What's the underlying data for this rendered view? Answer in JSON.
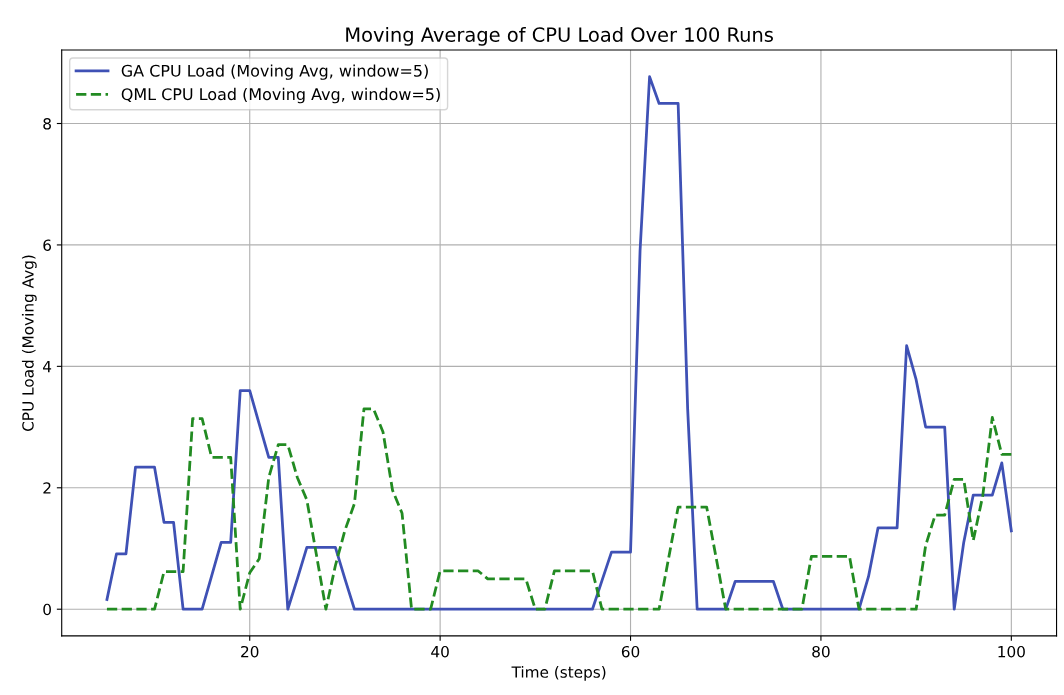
{
  "chart_data": {
    "type": "line",
    "title": "Moving Average of CPU Load Over 100 Runs",
    "xlabel": "Time (steps)",
    "ylabel": "CPU Load (Moving Avg)",
    "x": [
      5,
      6,
      7,
      8,
      9,
      10,
      11,
      12,
      13,
      14,
      15,
      16,
      17,
      18,
      19,
      20,
      21,
      22,
      23,
      24,
      25,
      26,
      27,
      28,
      29,
      30,
      31,
      32,
      33,
      34,
      35,
      36,
      37,
      38,
      39,
      40,
      41,
      42,
      43,
      44,
      45,
      46,
      47,
      48,
      49,
      50,
      51,
      52,
      53,
      54,
      55,
      56,
      57,
      58,
      59,
      60,
      61,
      62,
      63,
      64,
      65,
      66,
      67,
      68,
      69,
      70,
      71,
      72,
      73,
      74,
      75,
      76,
      77,
      78,
      79,
      80,
      81,
      82,
      83,
      84,
      85,
      86,
      87,
      88,
      89,
      90,
      91,
      92,
      93,
      94,
      95,
      96,
      97,
      98,
      99,
      100
    ],
    "series": [
      {
        "name": "GA CPU Load (Moving Avg, window=5)",
        "color": "#3f51b5",
        "line_style": "solid",
        "values": [
          0.16,
          0.91,
          0.91,
          2.34,
          2.34,
          2.34,
          1.43,
          1.43,
          0,
          0,
          0,
          0.55,
          1.1,
          1.1,
          3.6,
          3.6,
          3.05,
          2.5,
          2.5,
          0,
          0.5,
          1.02,
          1.02,
          1.02,
          1.02,
          0.5,
          0,
          0,
          0,
          0,
          0,
          0,
          0,
          0,
          0,
          0,
          0,
          0,
          0,
          0,
          0,
          0,
          0,
          0,
          0,
          0,
          0,
          0,
          0,
          0,
          0,
          0,
          0.47,
          0.94,
          0.94,
          0.94,
          5.9,
          8.77,
          8.33,
          8.33,
          8.33,
          3.3,
          0,
          0,
          0,
          0,
          0.46,
          0.46,
          0.46,
          0.46,
          0.46,
          0,
          0,
          0,
          0,
          0,
          0,
          0,
          0,
          0,
          0.54,
          1.34,
          1.34,
          1.34,
          4.34,
          3.78,
          3.0,
          3.0,
          3.0,
          0,
          1.1,
          1.88,
          1.88,
          1.88,
          2.41,
          1.29
        ]
      },
      {
        "name": "QML CPU Load (Moving Avg, window=5)",
        "color": "#228b22",
        "line_style": "dashed",
        "values": [
          0,
          0,
          0,
          0,
          0,
          0,
          0.62,
          0.62,
          0.62,
          3.14,
          3.14,
          2.5,
          2.5,
          2.5,
          0,
          0.6,
          0.83,
          2.17,
          2.71,
          2.71,
          2.17,
          1.8,
          0.9,
          0,
          0.72,
          1.3,
          1.74,
          3.3,
          3.3,
          2.92,
          1.96,
          1.58,
          0,
          0,
          0,
          0.63,
          0.63,
          0.63,
          0.63,
          0.63,
          0.5,
          0.5,
          0.5,
          0.5,
          0.5,
          0,
          0,
          0.63,
          0.63,
          0.63,
          0.63,
          0.63,
          0,
          0,
          0,
          0,
          0,
          0,
          0,
          0.84,
          1.68,
          1.68,
          1.68,
          1.68,
          0.84,
          0,
          0,
          0,
          0,
          0,
          0,
          0,
          0,
          0,
          0.87,
          0.87,
          0.87,
          0.87,
          0.87,
          0,
          0,
          0,
          0,
          0,
          0,
          0,
          1.05,
          1.55,
          1.55,
          2.14,
          2.14,
          1.13,
          1.87,
          3.16,
          2.55,
          2.55
        ]
      }
    ],
    "xlim": [
      0.25,
      104.75
    ],
    "ylim": [
      -0.44,
      9.21
    ],
    "xticks": [
      20,
      40,
      60,
      80,
      100
    ],
    "yticks": [
      0,
      2,
      4,
      6,
      8
    ],
    "grid": true,
    "legend": "top left"
  }
}
